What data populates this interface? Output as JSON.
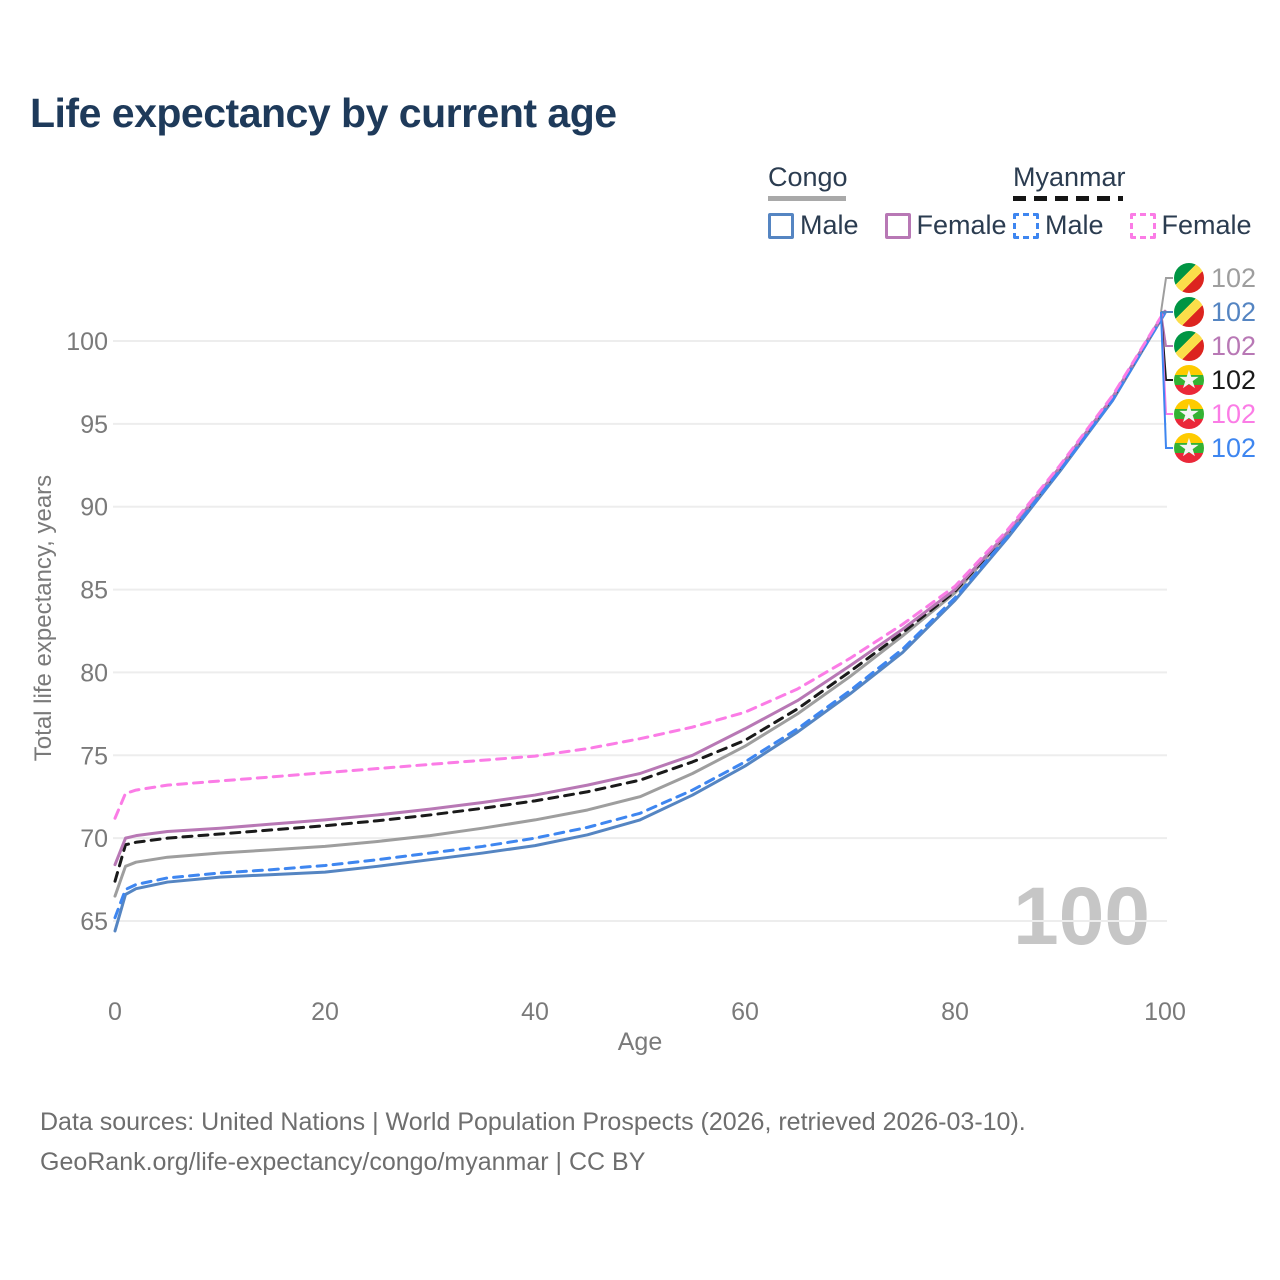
{
  "title": "Life expectancy by current age",
  "legend": {
    "groups": [
      {
        "name": "Congo",
        "line_style": "solid",
        "underline_color": "#a9a9a9",
        "items": [
          {
            "label": "Male",
            "color": "#5585c2"
          },
          {
            "label": "Female",
            "color": "#b878b5"
          }
        ]
      },
      {
        "name": "Myanmar",
        "line_style": "dashed",
        "underline_color": "#151515",
        "items": [
          {
            "label": "Male",
            "color": "#3e86f0"
          },
          {
            "label": "Female",
            "color": "#fb7ce6"
          }
        ]
      }
    ]
  },
  "watermark": "100",
  "chart_data": {
    "type": "line",
    "title": "Life expectancy by current age",
    "xlabel": "Age",
    "ylabel": "Total life expectancy, years",
    "xlim": [
      0,
      100
    ],
    "ylim": [
      63,
      103
    ],
    "x_ticks": [
      0,
      20,
      40,
      60,
      80,
      100
    ],
    "y_ticks": [
      65,
      70,
      75,
      80,
      85,
      90,
      95,
      100
    ],
    "grid": "horizontal",
    "legend_position": "top-right",
    "ages": [
      0,
      1,
      2,
      5,
      10,
      15,
      20,
      25,
      30,
      35,
      40,
      45,
      50,
      55,
      60,
      65,
      70,
      75,
      80,
      85,
      90,
      95,
      100
    ],
    "series": [
      {
        "name": "Congo both sexes",
        "country": "Congo",
        "sex": "both",
        "color": "#9e9e9e",
        "dash": false,
        "values": [
          66.5,
          68.3,
          68.55,
          68.85,
          69.1,
          69.3,
          69.5,
          69.8,
          70.15,
          70.6,
          71.1,
          71.7,
          72.5,
          73.9,
          75.55,
          77.5,
          79.75,
          82.2,
          84.8,
          88.35,
          92.3,
          96.5,
          101.75
        ]
      },
      {
        "name": "Congo male",
        "country": "Congo",
        "sex": "male",
        "color": "#5585c2",
        "dash": false,
        "values": [
          64.4,
          66.6,
          66.95,
          67.35,
          67.65,
          67.8,
          67.95,
          68.3,
          68.7,
          69.1,
          69.55,
          70.2,
          71.1,
          72.6,
          74.35,
          76.4,
          78.7,
          81.2,
          84.35,
          88.1,
          92.15,
          96.4,
          101.7
        ]
      },
      {
        "name": "Myanmar both sexes",
        "country": "Myanmar",
        "sex": "both",
        "color": "#1a1a1a",
        "dash": true,
        "values": [
          67.4,
          69.6,
          69.75,
          70.0,
          70.25,
          70.5,
          70.75,
          71.05,
          71.4,
          71.8,
          72.25,
          72.8,
          73.5,
          74.6,
          75.9,
          77.8,
          80.05,
          82.4,
          84.9,
          88.4,
          92.35,
          96.55,
          101.78
        ]
      },
      {
        "name": "Congo female",
        "country": "Congo",
        "sex": "female",
        "color": "#b878b5",
        "dash": false,
        "values": [
          68.4,
          70.0,
          70.15,
          70.4,
          70.6,
          70.85,
          71.1,
          71.4,
          71.75,
          72.15,
          72.6,
          73.2,
          73.9,
          75.0,
          76.6,
          78.3,
          80.4,
          82.6,
          85.0,
          88.45,
          92.4,
          96.6,
          101.8
        ]
      },
      {
        "name": "Myanmar male",
        "country": "Myanmar",
        "sex": "male",
        "color": "#3e86f0",
        "dash": true,
        "values": [
          65.2,
          66.9,
          67.2,
          67.6,
          67.9,
          68.1,
          68.35,
          68.7,
          69.1,
          69.5,
          70.0,
          70.65,
          71.5,
          72.9,
          74.6,
          76.6,
          78.9,
          81.4,
          84.5,
          88.2,
          92.2,
          96.45,
          101.7
        ]
      },
      {
        "name": "Myanmar female",
        "country": "Myanmar",
        "sex": "female",
        "color": "#fb7ce6",
        "dash": true,
        "values": [
          71.2,
          72.7,
          72.9,
          73.2,
          73.45,
          73.7,
          73.95,
          74.2,
          74.45,
          74.7,
          74.95,
          75.4,
          76.0,
          76.7,
          77.6,
          79.0,
          80.85,
          82.9,
          85.2,
          88.6,
          92.5,
          96.7,
          101.85
        ]
      }
    ],
    "end_labels": [
      {
        "series": "Congo both sexes",
        "flag": "congo",
        "value": "102",
        "color": "#9e9e9e"
      },
      {
        "series": "Congo male",
        "flag": "congo",
        "value": "102",
        "color": "#5585c2"
      },
      {
        "series": "Congo female",
        "flag": "congo",
        "value": "102",
        "color": "#b878b5"
      },
      {
        "series": "Myanmar both sexes",
        "flag": "myanmar",
        "value": "102",
        "color": "#1a1a1a"
      },
      {
        "series": "Myanmar female",
        "flag": "myanmar",
        "value": "102",
        "color": "#fb7ce6"
      },
      {
        "series": "Myanmar male",
        "flag": "myanmar",
        "value": "102",
        "color": "#3e86f0"
      }
    ]
  },
  "footer": {
    "line1": "Data sources: United Nations | World Population Prospects (2026, retrieved 2026-03-10).",
    "line2": "GeoRank.org/life-expectancy/congo/myanmar | CC BY"
  },
  "colors": {
    "title": "#1e3a5a",
    "axis_text": "#7a7a7a",
    "gridline": "#ededed",
    "watermark": "#c6c6c6",
    "footer_text": "#6e6e6e"
  }
}
